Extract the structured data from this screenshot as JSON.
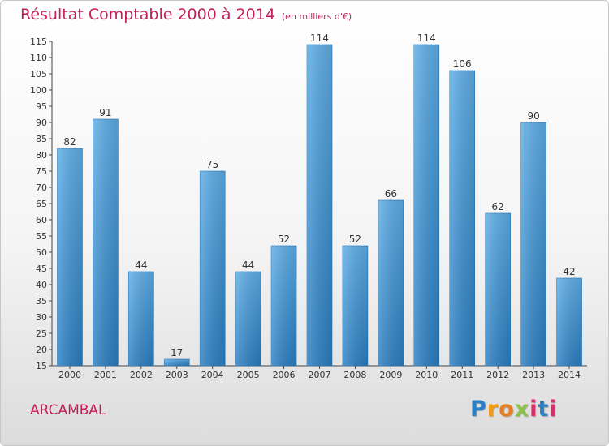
{
  "header": {
    "title": "Résultat Comptable 2000 à 2014",
    "unit": "(en milliers d'€)"
  },
  "footer": {
    "town": "ARCAMBAL",
    "logo_letters": [
      "P",
      "r",
      "o",
      "x",
      "i",
      "t",
      "i"
    ]
  },
  "colors": {
    "title": "#c31f5a",
    "bar_top": "#5dade6",
    "bar_bottom": "#2a7dc0",
    "logo": [
      "#2b7fc4",
      "#f39c12",
      "#e67e22",
      "#8bc34a",
      "#d62f6c",
      "#2b7fc4",
      "#d62f6c"
    ]
  },
  "chart_data": {
    "type": "bar",
    "title": "Résultat Comptable 2000 à 2014",
    "ylabel": "en milliers d'€",
    "xlabel": "",
    "categories": [
      "2000",
      "2001",
      "2002",
      "2003",
      "2004",
      "2005",
      "2006",
      "2007",
      "2008",
      "2009",
      "2010",
      "2011",
      "2012",
      "2013",
      "2014"
    ],
    "values": [
      82,
      91,
      44,
      17,
      75,
      44,
      52,
      114,
      52,
      66,
      114,
      106,
      62,
      90,
      42
    ],
    "ylim": [
      15,
      115
    ],
    "ytick_step": 5,
    "grid": false
  }
}
